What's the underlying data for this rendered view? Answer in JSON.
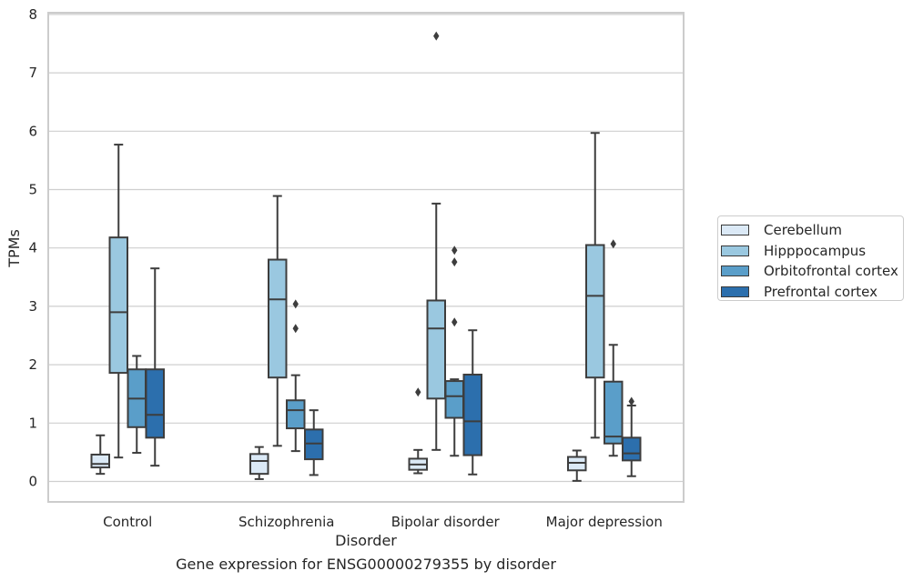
{
  "caption": "Gene expression for ENSG00000279355 by disorder",
  "chart_data": {
    "type": "box",
    "xlabel": "Disorder",
    "ylabel": "TPMs",
    "ylim": [
      -0.35,
      8.0
    ],
    "yticks": [
      0,
      1,
      2,
      3,
      4,
      5,
      6,
      7,
      8
    ],
    "grid": true,
    "legend_position": "right, outside plot",
    "categories": [
      "Control",
      "Schizophrenia",
      "Bipolar disorder",
      "Major depression"
    ],
    "series": [
      {
        "name": "Cerebellum",
        "color": "#dbe9f6",
        "boxes": [
          {
            "whisker_low": 0.13,
            "q1": 0.24,
            "median": 0.3,
            "q3": 0.46,
            "whisker_high": 0.79,
            "outliers": []
          },
          {
            "whisker_low": 0.04,
            "q1": 0.13,
            "median": 0.35,
            "q3": 0.47,
            "whisker_high": 0.59,
            "outliers": []
          },
          {
            "whisker_low": 0.14,
            "q1": 0.2,
            "median": 0.29,
            "q3": 0.39,
            "whisker_high": 0.54,
            "outliers": [
              1.53
            ]
          },
          {
            "whisker_low": 0.01,
            "q1": 0.19,
            "median": 0.32,
            "q3": 0.42,
            "whisker_high": 0.53,
            "outliers": []
          }
        ]
      },
      {
        "name": "Hipppocampus",
        "color": "#9ac8e0",
        "boxes": [
          {
            "whisker_low": 0.41,
            "q1": 1.86,
            "median": 2.9,
            "q3": 4.18,
            "whisker_high": 5.77,
            "outliers": []
          },
          {
            "whisker_low": 0.61,
            "q1": 1.78,
            "median": 3.12,
            "q3": 3.8,
            "whisker_high": 4.89,
            "outliers": []
          },
          {
            "whisker_low": 0.54,
            "q1": 1.42,
            "median": 2.62,
            "q3": 3.1,
            "whisker_high": 4.76,
            "outliers": [
              7.63
            ]
          },
          {
            "whisker_low": 0.75,
            "q1": 1.78,
            "median": 3.18,
            "q3": 4.05,
            "whisker_high": 5.97,
            "outliers": []
          }
        ]
      },
      {
        "name": "Orbitofrontal cortex",
        "color": "#5a9ec9",
        "boxes": [
          {
            "whisker_low": 0.49,
            "q1": 0.93,
            "median": 1.42,
            "q3": 1.92,
            "whisker_high": 2.15,
            "outliers": []
          },
          {
            "whisker_low": 0.52,
            "q1": 0.91,
            "median": 1.22,
            "q3": 1.39,
            "whisker_high": 1.82,
            "outliers": [
              2.62,
              3.04
            ]
          },
          {
            "whisker_low": 0.44,
            "q1": 1.09,
            "median": 1.46,
            "q3": 1.72,
            "whisker_high": 1.75,
            "outliers": [
              2.73,
              3.76,
              3.96
            ]
          },
          {
            "whisker_low": 0.44,
            "q1": 0.65,
            "median": 0.77,
            "q3": 1.71,
            "whisker_high": 2.34,
            "outliers": [
              4.07
            ]
          }
        ]
      },
      {
        "name": "Prefrontal cortex",
        "color": "#2c6fad",
        "boxes": [
          {
            "whisker_low": 0.27,
            "q1": 0.75,
            "median": 1.14,
            "q3": 1.92,
            "whisker_high": 3.65,
            "outliers": []
          },
          {
            "whisker_low": 0.11,
            "q1": 0.38,
            "median": 0.65,
            "q3": 0.89,
            "whisker_high": 1.22,
            "outliers": []
          },
          {
            "whisker_low": 0.12,
            "q1": 0.45,
            "median": 1.03,
            "q3": 1.83,
            "whisker_high": 2.59,
            "outliers": []
          },
          {
            "whisker_low": 0.09,
            "q1": 0.36,
            "median": 0.48,
            "q3": 0.75,
            "whisker_high": 1.3,
            "outliers": [
              1.37
            ]
          }
        ]
      }
    ]
  }
}
